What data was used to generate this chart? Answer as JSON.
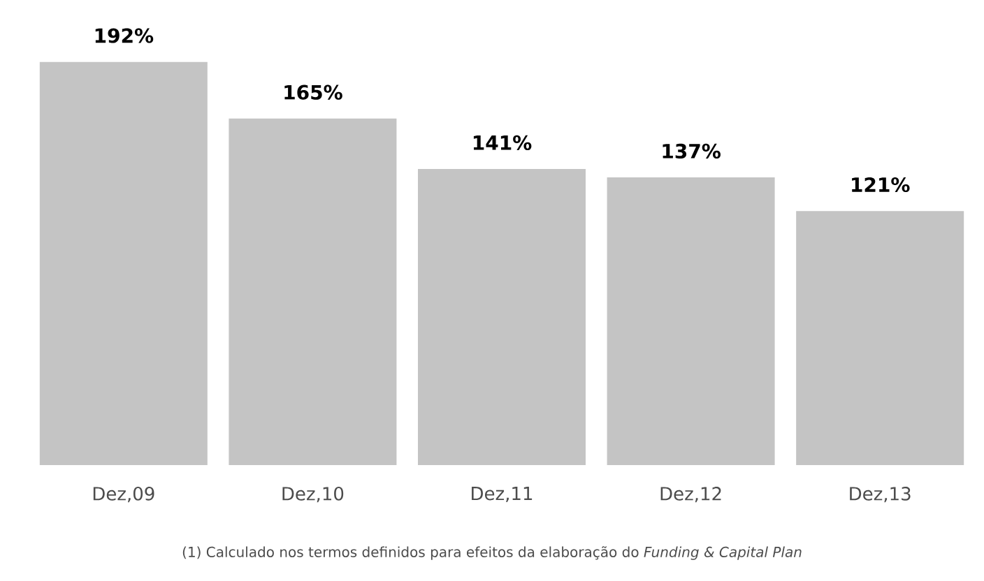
{
  "chart_data": {
    "type": "bar",
    "categories": [
      "Dez,09",
      "Dez,10",
      "Dez,11",
      "Dez,12",
      "Dez,13"
    ],
    "values": [
      192,
      165,
      141,
      137,
      121
    ],
    "value_labels": [
      "192%",
      "165%",
      "141%",
      "137%",
      "121%"
    ],
    "color": "#c4c4c4",
    "annotations": [
      "(1) Calculado nos termos definidos para efeitos da elaboração do *Funding & Capital Plan*"
    ]
  }
}
